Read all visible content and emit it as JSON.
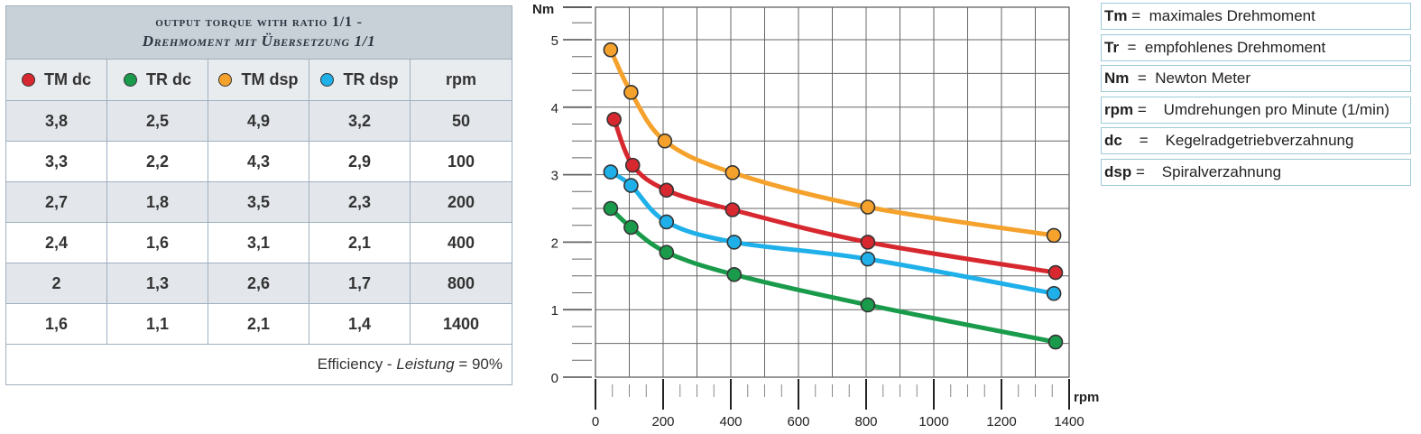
{
  "table": {
    "title_line1": "output torque with ratio 1/1 -",
    "title_line2": "Drehmoment mit Übersetzung 1/1",
    "headers": [
      {
        "pre": "T",
        "sub": "M",
        "post": " dc",
        "color": "#d7282f"
      },
      {
        "pre": "T",
        "sub": "R",
        "post": " dc",
        "color": "#1a9b4b"
      },
      {
        "pre": "T",
        "sub": "M",
        "post": " dsp",
        "color": "#f5a22d"
      },
      {
        "pre": "T",
        "sub": "R",
        "post": " dsp",
        "color": "#1fb0ea"
      },
      {
        "pre": "",
        "sub": "",
        "post": "rpm",
        "color": ""
      }
    ],
    "rows": [
      [
        "3,8",
        "2,5",
        "4,9",
        "3,2",
        "50"
      ],
      [
        "3,3",
        "2,2",
        "4,3",
        "2,9",
        "100"
      ],
      [
        "2,7",
        "1,8",
        "3,5",
        "2,3",
        "200"
      ],
      [
        "2,4",
        "1,6",
        "3,1",
        "2,1",
        "400"
      ],
      [
        "2",
        "1,3",
        "2,6",
        "1,7",
        "800"
      ],
      [
        "1,6",
        "1,1",
        "2,1",
        "1,4",
        "1400"
      ]
    ],
    "footer_prefix": "Efficiency - ",
    "footer_italic": "Leistung",
    "footer_suffix": " = 90%"
  },
  "legend": [
    {
      "key": "Tm",
      "sep": " =  ",
      "text": "maximales Drehmoment"
    },
    {
      "key": "Tr",
      "sep": "  =  ",
      "text": "empfohlenes Drehmoment"
    },
    {
      "key": "Nm",
      "sep": "  =  ",
      "text": "Newton Meter"
    },
    {
      "key": "rpm",
      "sep": " =    ",
      "text": "Umdrehungen pro Minute (1/min)"
    },
    {
      "key": "dc",
      "sep": "    =    ",
      "text": "Kegelradgetriebverzahnung"
    },
    {
      "key": "dsp",
      "sep": " =    ",
      "text": "Spiralverzahnung"
    }
  ],
  "chart_data": {
    "type": "line",
    "xlabel": "rpm",
    "ylabel": "Nm",
    "xlim": [
      0,
      1400
    ],
    "ylim": [
      0,
      5
    ],
    "x_ticks": [
      "0",
      "200",
      "400",
      "600",
      "800",
      "1000",
      "1200",
      "1400"
    ],
    "y_ticks": [
      "0",
      "1",
      "2",
      "3",
      "4",
      "5"
    ],
    "grid": true,
    "series": [
      {
        "name": "TM dsp",
        "color": "#f5a22d",
        "points": [
          [
            45,
            4.85
          ],
          [
            105,
            4.22
          ],
          [
            205,
            3.5
          ],
          [
            405,
            3.03
          ],
          [
            805,
            2.52
          ],
          [
            1355,
            2.1
          ]
        ]
      },
      {
        "name": "TM dc",
        "color": "#d7282f",
        "points": [
          [
            55,
            3.82
          ],
          [
            110,
            3.14
          ],
          [
            210,
            2.77
          ],
          [
            405,
            2.48
          ],
          [
            805,
            2.0
          ],
          [
            1360,
            1.55
          ]
        ]
      },
      {
        "name": "TR dsp",
        "color": "#1fb0ea",
        "points": [
          [
            45,
            3.04
          ],
          [
            105,
            2.84
          ],
          [
            210,
            2.3
          ],
          [
            410,
            2.0
          ],
          [
            805,
            1.75
          ],
          [
            1355,
            1.24
          ]
        ]
      },
      {
        "name": "TR dc",
        "color": "#1a9b4b",
        "points": [
          [
            45,
            2.5
          ],
          [
            105,
            2.22
          ],
          [
            210,
            1.85
          ],
          [
            410,
            1.52
          ],
          [
            805,
            1.07
          ],
          [
            1360,
            0.52
          ]
        ]
      }
    ]
  }
}
